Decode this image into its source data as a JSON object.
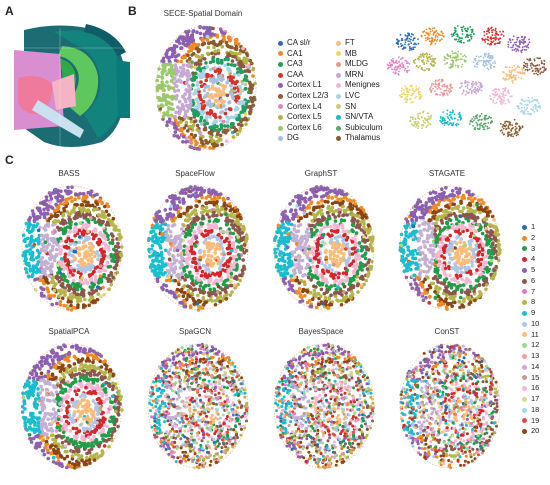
{
  "panels": {
    "a": "A",
    "b": "B",
    "c": "C"
  },
  "b_title": "SECE-Spatial Domain",
  "domains_col1": [
    {
      "label": "CA sl/r",
      "color": "#2f6db5"
    },
    {
      "label": "CA1",
      "color": "#ef8a24"
    },
    {
      "label": "CA3",
      "color": "#1f9e60"
    },
    {
      "label": "CAA",
      "color": "#d9312b"
    },
    {
      "label": "Cortex L1",
      "color": "#8d5fb1"
    },
    {
      "label": "Cortex L2/3",
      "color": "#8c5a3c"
    },
    {
      "label": "Cortex L4",
      "color": "#e384c2"
    },
    {
      "label": "Cortex L5",
      "color": "#b3b347"
    },
    {
      "label": "Cortex L6",
      "color": "#9bc96b"
    },
    {
      "label": "DG",
      "color": "#a6bfe0"
    }
  ],
  "domains_col2": [
    {
      "label": "FT",
      "color": "#f6be83"
    },
    {
      "label": "MB",
      "color": "#f3d26a"
    },
    {
      "label": "MLDG",
      "color": "#f19693"
    },
    {
      "label": "MRN",
      "color": "#c7a7d6"
    },
    {
      "label": "Menignes",
      "color": "#f1b8d4"
    },
    {
      "label": "LVC",
      "color": "#a6d6e6"
    },
    {
      "label": "SN",
      "color": "#c9cf75"
    },
    {
      "label": "SN/VTA",
      "color": "#17becf"
    },
    {
      "label": "Subiculum",
      "color": "#5aa66a"
    },
    {
      "label": "Thalamus",
      "color": "#8b5a2b"
    }
  ],
  "method_titles": [
    "BASS",
    "SpaceFlow",
    "GraphST",
    "STAGATE",
    "SpatialPCA",
    "SpaGCN",
    "BayesSpace",
    "ConST"
  ],
  "clusters": [
    {
      "label": "1",
      "color": "#1f6fb4"
    },
    {
      "label": "2",
      "color": "#ef8a24"
    },
    {
      "label": "3",
      "color": "#1f9e4a"
    },
    {
      "label": "4",
      "color": "#d62728"
    },
    {
      "label": "5",
      "color": "#8d5fb1"
    },
    {
      "label": "6",
      "color": "#8c564b"
    },
    {
      "label": "7",
      "color": "#e377c2"
    },
    {
      "label": "8",
      "color": "#b5b54a"
    },
    {
      "label": "9",
      "color": "#17becf"
    },
    {
      "label": "10",
      "color": "#aec7e8"
    },
    {
      "label": "11",
      "color": "#ffbb78"
    },
    {
      "label": "12",
      "color": "#98df8a"
    },
    {
      "label": "13",
      "color": "#ff9896"
    },
    {
      "label": "14",
      "color": "#c5b0d5"
    },
    {
      "label": "15",
      "color": "#c49c94"
    },
    {
      "label": "16",
      "color": "#f7b6d2"
    },
    {
      "label": "17",
      "color": "#dbdb8d"
    },
    {
      "label": "18",
      "color": "#9edae5"
    },
    {
      "label": "19",
      "color": "#e04a3a"
    },
    {
      "label": "20",
      "color": "#8b4513"
    }
  ]
}
